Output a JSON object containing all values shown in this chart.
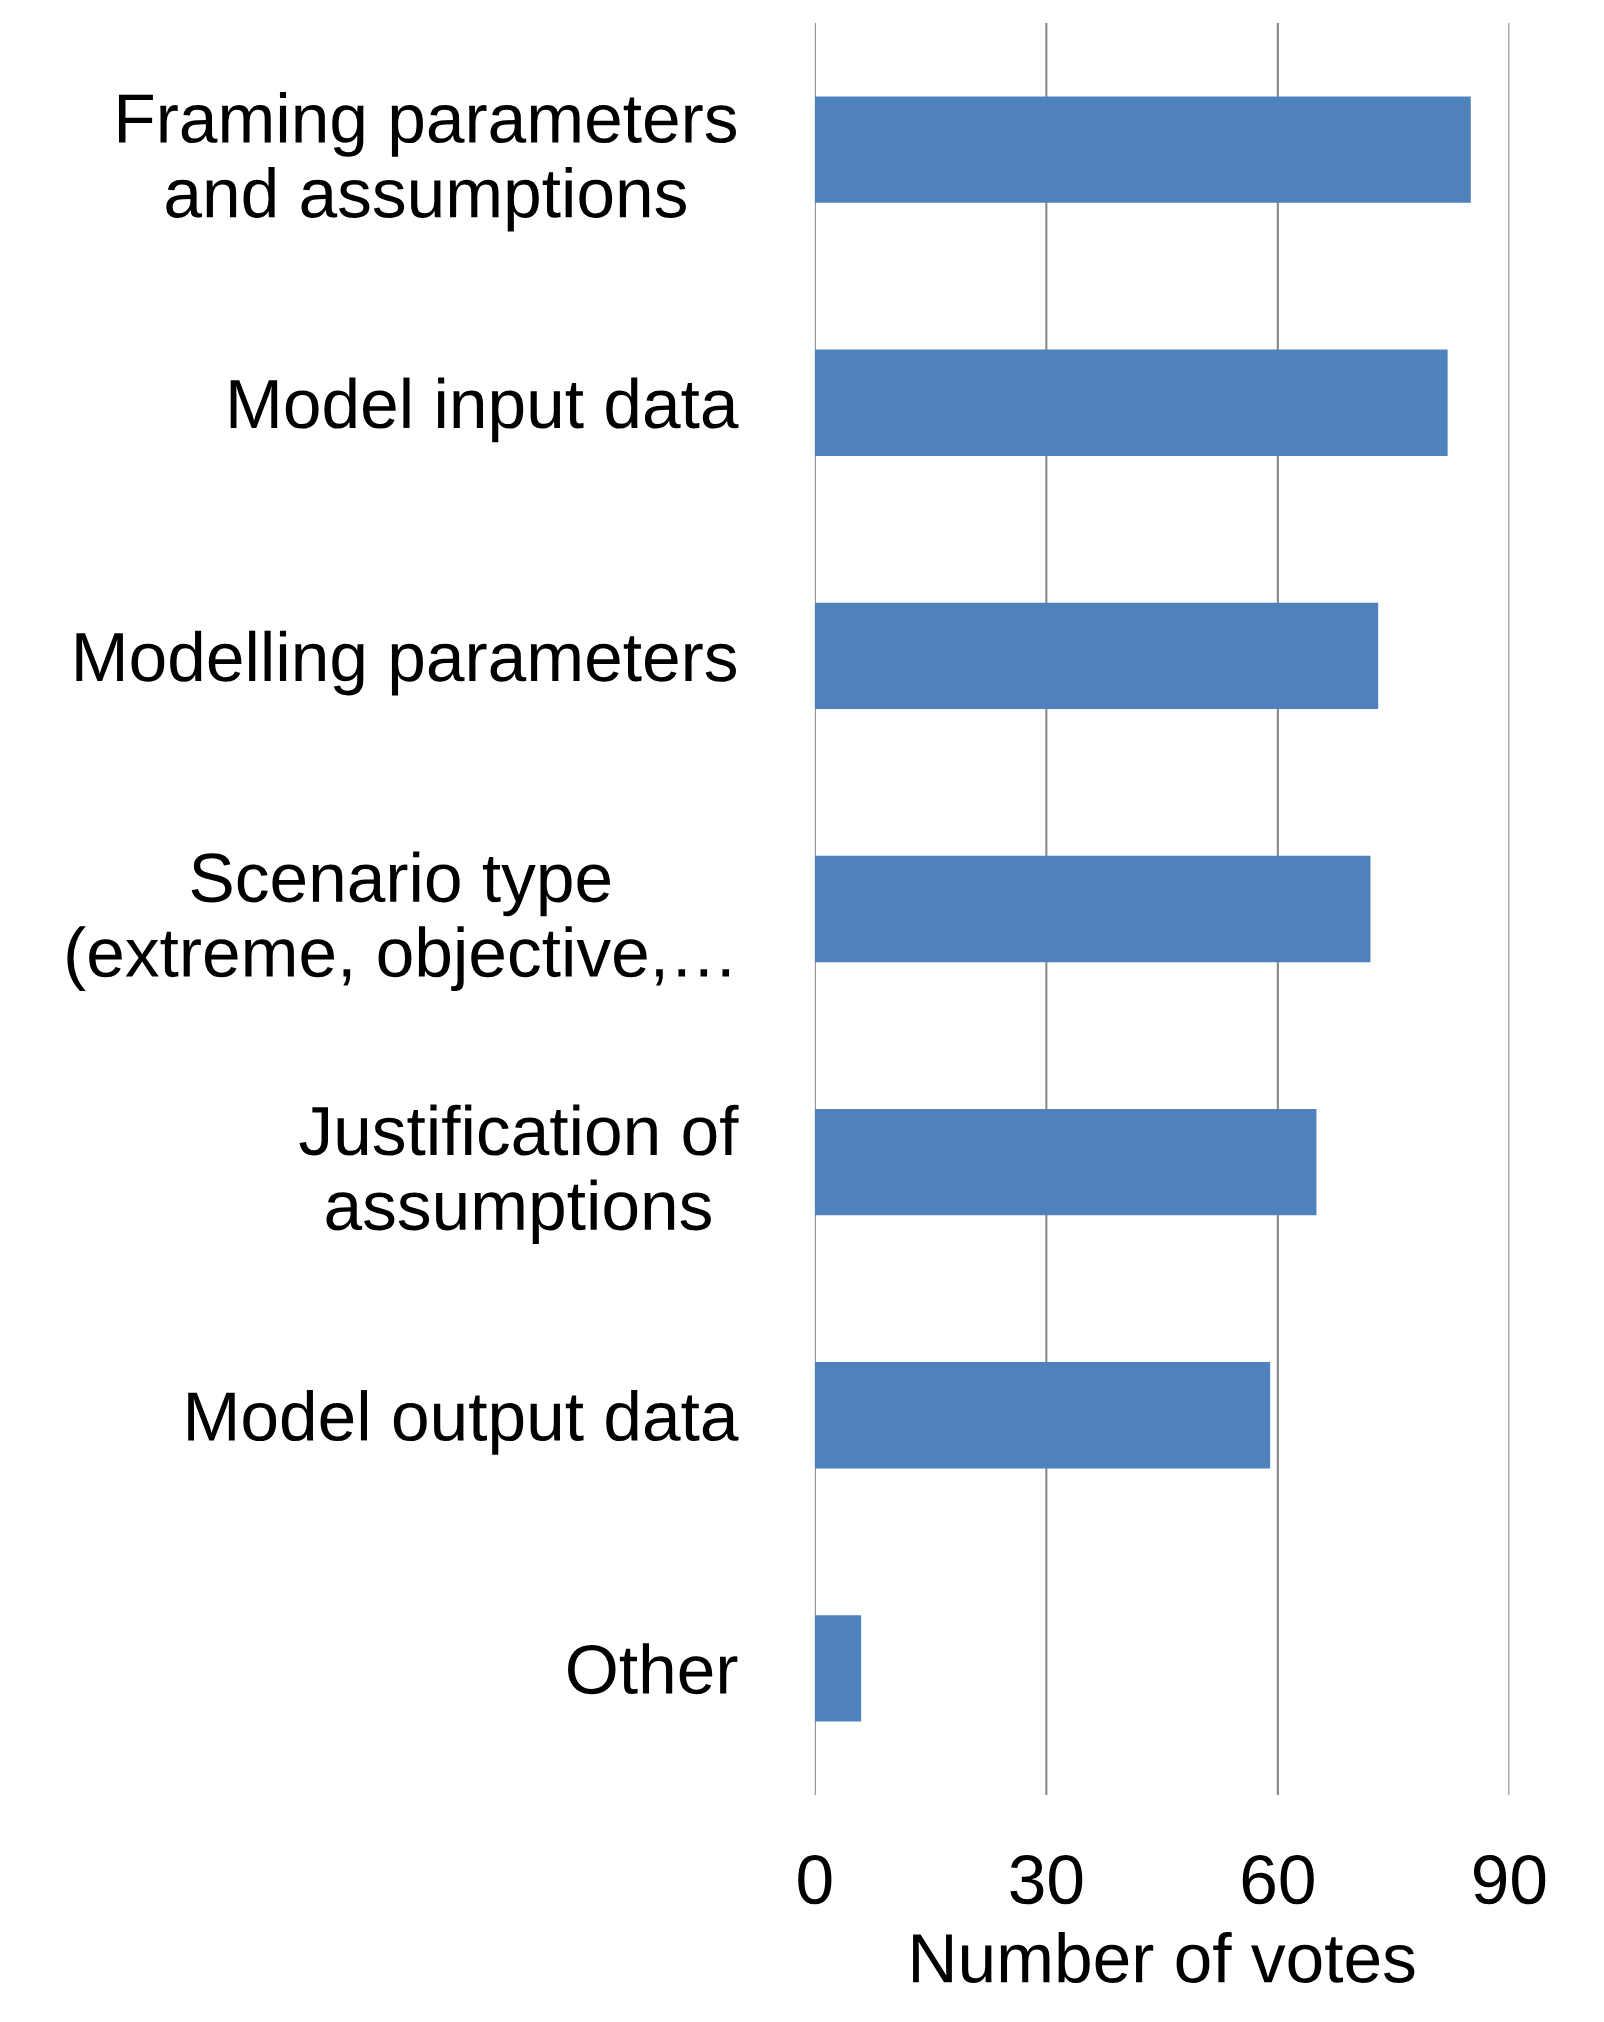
{
  "chart_data": {
    "type": "bar",
    "orientation": "horizontal",
    "categories": [
      "Framing parameters\nand assumptions",
      "Model input data",
      "Modelling parameters",
      "Scenario type\n(extreme, objective,…",
      "Justification of\nassumptions",
      "Model output data",
      "Other"
    ],
    "values": [
      85,
      82,
      73,
      72,
      65,
      59,
      6
    ],
    "color": "#4f81bd",
    "xlabel": "Number of votes",
    "xlim": [
      0,
      90
    ],
    "xticks": [
      0,
      30,
      60,
      90
    ],
    "grid": "x",
    "legend": false
  }
}
